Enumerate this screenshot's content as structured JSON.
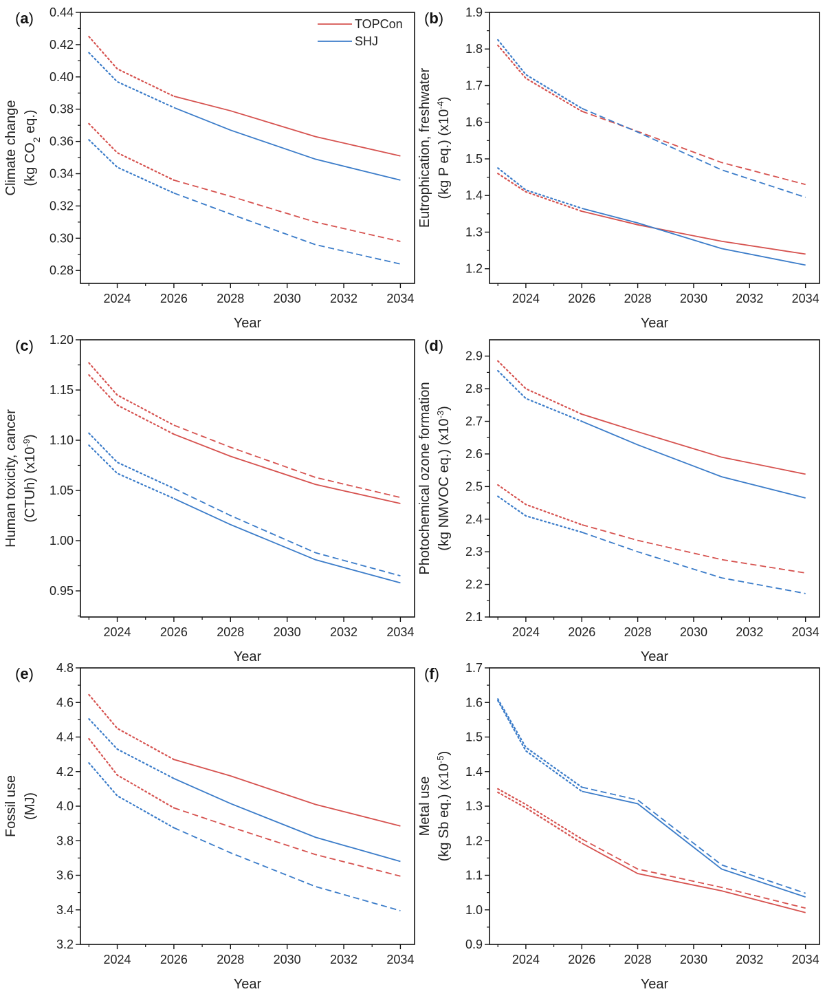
{
  "colors": {
    "TOPCon": "#d6524f",
    "SHJ": "#3b7cc9"
  },
  "legend": [
    {
      "name": "TOPCon",
      "color_key": "TOPCon"
    },
    {
      "name": "SHJ",
      "color_key": "SHJ"
    }
  ],
  "chart_data": [
    {
      "type": "line",
      "panel": "a",
      "xlabel": "Year",
      "ylabel": [
        [
          {
            "t": "Climate change"
          }
        ],
        [
          {
            "t": "(kg CO"
          },
          {
            "t": "2",
            "sub": true
          },
          {
            "t": " eq.)"
          }
        ]
      ],
      "ylim": [
        0.272,
        0.44
      ],
      "yticks": [
        0.28,
        0.3,
        0.32,
        0.34,
        0.36,
        0.38,
        0.4,
        0.42,
        0.44
      ],
      "ydec": 2,
      "yminor": 0.01,
      "xlim": [
        2022.7,
        2034.5
      ],
      "xticks": [
        2024,
        2026,
        2028,
        2030,
        2032,
        2034
      ],
      "x": [
        2023,
        2024,
        2026,
        2028,
        2031,
        2034
      ],
      "series": [
        {
          "name": "TOPCon",
          "style": "solid",
          "values": [
            0.425,
            0.405,
            0.388,
            0.379,
            0.363,
            0.351
          ]
        },
        {
          "name": "SHJ",
          "style": "solid",
          "values": [
            0.415,
            0.397,
            0.381,
            0.367,
            0.349,
            0.336
          ]
        },
        {
          "name": "TOPCon",
          "style": "dashed",
          "values": [
            0.371,
            0.353,
            0.336,
            0.326,
            0.31,
            0.298
          ]
        },
        {
          "name": "SHJ",
          "style": "dashed",
          "values": [
            0.361,
            0.344,
            0.328,
            0.315,
            0.296,
            0.284
          ]
        }
      ]
    },
    {
      "type": "line",
      "panel": "b",
      "xlabel": "Year",
      "ylabel": [
        [
          {
            "t": "Eutrophication, freshwater"
          }
        ],
        [
          {
            "t": "(kg P eq.) (x10"
          },
          {
            "t": "-4",
            "sup": true
          },
          {
            "t": ")"
          }
        ]
      ],
      "ylim": [
        1.16,
        1.9
      ],
      "yticks": [
        1.2,
        1.3,
        1.4,
        1.5,
        1.6,
        1.7,
        1.8,
        1.9
      ],
      "ydec": 1,
      "yminor": 0.05,
      "xlim": [
        2022.7,
        2034.5
      ],
      "xticks": [
        2024,
        2026,
        2028,
        2030,
        2032,
        2034
      ],
      "x": [
        2023,
        2024,
        2026,
        2028,
        2031,
        2034
      ],
      "series": [
        {
          "name": "TOPCon",
          "style": "dashed",
          "values": [
            1.81,
            1.72,
            1.63,
            1.575,
            1.49,
            1.43
          ]
        },
        {
          "name": "SHJ",
          "style": "dashed",
          "values": [
            1.825,
            1.73,
            1.638,
            1.573,
            1.47,
            1.395
          ]
        },
        {
          "name": "TOPCon",
          "style": "solid",
          "values": [
            1.46,
            1.41,
            1.357,
            1.32,
            1.275,
            1.24
          ]
        },
        {
          "name": "SHJ",
          "style": "solid",
          "values": [
            1.475,
            1.415,
            1.365,
            1.325,
            1.255,
            1.21
          ]
        }
      ]
    },
    {
      "type": "line",
      "panel": "c",
      "xlabel": "Year",
      "ylabel": [
        [
          {
            "t": "Human toxicity, cancer"
          }
        ],
        [
          {
            "t": "(CTUh) (x10"
          },
          {
            "t": "-9",
            "sup": true
          },
          {
            "t": ")"
          }
        ]
      ],
      "ylim": [
        0.924,
        1.2
      ],
      "yticks": [
        0.95,
        1.0,
        1.05,
        1.1,
        1.15,
        1.2
      ],
      "ydec": 2,
      "yminor": 0.025,
      "xlim": [
        2022.7,
        2034.5
      ],
      "xticks": [
        2024,
        2026,
        2028,
        2030,
        2032,
        2034
      ],
      "x": [
        2023,
        2024,
        2026,
        2028,
        2031,
        2034
      ],
      "series": [
        {
          "name": "TOPCon",
          "style": "dashed",
          "values": [
            1.177,
            1.145,
            1.115,
            1.093,
            1.063,
            1.043
          ]
        },
        {
          "name": "TOPCon",
          "style": "solid",
          "values": [
            1.165,
            1.135,
            1.106,
            1.084,
            1.056,
            1.037
          ]
        },
        {
          "name": "SHJ",
          "style": "dashed",
          "values": [
            1.107,
            1.078,
            1.052,
            1.025,
            0.988,
            0.965
          ]
        },
        {
          "name": "SHJ",
          "style": "solid",
          "values": [
            1.095,
            1.067,
            1.042,
            1.016,
            0.981,
            0.958
          ]
        }
      ]
    },
    {
      "type": "line",
      "panel": "d",
      "xlabel": "Year",
      "ylabel": [
        [
          {
            "t": "Photochemical ozone formation"
          }
        ],
        [
          {
            "t": "(kg NMVOC eq.) (x10"
          },
          {
            "t": "-3",
            "sup": true
          },
          {
            "t": ")"
          }
        ]
      ],
      "ylim": [
        2.1,
        2.95
      ],
      "yticks": [
        2.1,
        2.2,
        2.3,
        2.4,
        2.5,
        2.6,
        2.7,
        2.8,
        2.9
      ],
      "ydec": 1,
      "yminor": 0.05,
      "xlim": [
        2022.7,
        2034.5
      ],
      "xticks": [
        2024,
        2026,
        2028,
        2030,
        2032,
        2034
      ],
      "x": [
        2023,
        2024,
        2026,
        2028,
        2031,
        2034
      ],
      "series": [
        {
          "name": "TOPCon",
          "style": "solid",
          "values": [
            2.885,
            2.8,
            2.722,
            2.668,
            2.59,
            2.538
          ]
        },
        {
          "name": "SHJ",
          "style": "solid",
          "values": [
            2.855,
            2.77,
            2.7,
            2.628,
            2.53,
            2.465
          ]
        },
        {
          "name": "TOPCon",
          "style": "dashed",
          "values": [
            2.505,
            2.445,
            2.383,
            2.335,
            2.276,
            2.235
          ]
        },
        {
          "name": "SHJ",
          "style": "dashed",
          "values": [
            2.47,
            2.41,
            2.36,
            2.3,
            2.22,
            2.172
          ]
        }
      ]
    },
    {
      "type": "line",
      "panel": "e",
      "xlabel": "Year",
      "ylabel": [
        [
          {
            "t": "Fossil use"
          }
        ],
        [
          {
            "t": "(MJ)"
          }
        ]
      ],
      "ylim": [
        3.2,
        4.8
      ],
      "yticks": [
        3.2,
        3.4,
        3.6,
        3.8,
        4.0,
        4.2,
        4.4,
        4.6,
        4.8
      ],
      "ydec": 1,
      "yminor": 0.1,
      "xlim": [
        2022.7,
        2034.5
      ],
      "xticks": [
        2024,
        2026,
        2028,
        2030,
        2032,
        2034
      ],
      "x": [
        2023,
        2024,
        2026,
        2028,
        2031,
        2034
      ],
      "series": [
        {
          "name": "TOPCon",
          "style": "solid",
          "values": [
            4.645,
            4.45,
            4.27,
            4.175,
            4.01,
            3.885
          ]
        },
        {
          "name": "SHJ",
          "style": "solid",
          "values": [
            4.505,
            4.33,
            4.16,
            4.015,
            3.82,
            3.68
          ]
        },
        {
          "name": "TOPCon",
          "style": "dashed",
          "values": [
            4.39,
            4.18,
            3.99,
            3.88,
            3.72,
            3.595
          ]
        },
        {
          "name": "SHJ",
          "style": "dashed",
          "values": [
            4.25,
            4.06,
            3.875,
            3.73,
            3.535,
            3.395
          ]
        }
      ]
    },
    {
      "type": "line",
      "panel": "f",
      "xlabel": "Year",
      "ylabel": [
        [
          {
            "t": "Metal use"
          }
        ],
        [
          {
            "t": "(kg Sb eq.) (x10"
          },
          {
            "t": "-5",
            "sup": true
          },
          {
            "t": ")"
          }
        ]
      ],
      "ylim": [
        0.9,
        1.7
      ],
      "yticks": [
        0.9,
        1.0,
        1.1,
        1.2,
        1.3,
        1.4,
        1.5,
        1.6,
        1.7
      ],
      "ydec": 1,
      "yminor": 0.05,
      "xlim": [
        2022.7,
        2034.5
      ],
      "xticks": [
        2024,
        2026,
        2028,
        2030,
        2032,
        2034
      ],
      "x": [
        2023,
        2024,
        2026,
        2028,
        2031,
        2034
      ],
      "series": [
        {
          "name": "SHJ",
          "style": "dashed",
          "values": [
            1.61,
            1.47,
            1.355,
            1.318,
            1.13,
            1.048
          ]
        },
        {
          "name": "SHJ",
          "style": "solid",
          "values": [
            1.605,
            1.46,
            1.343,
            1.307,
            1.118,
            1.037
          ]
        },
        {
          "name": "TOPCon",
          "style": "dashed",
          "values": [
            1.35,
            1.305,
            1.205,
            1.118,
            1.065,
            1.005
          ]
        },
        {
          "name": "TOPCon",
          "style": "solid",
          "values": [
            1.34,
            1.295,
            1.193,
            1.105,
            1.055,
            0.992
          ]
        }
      ]
    }
  ]
}
